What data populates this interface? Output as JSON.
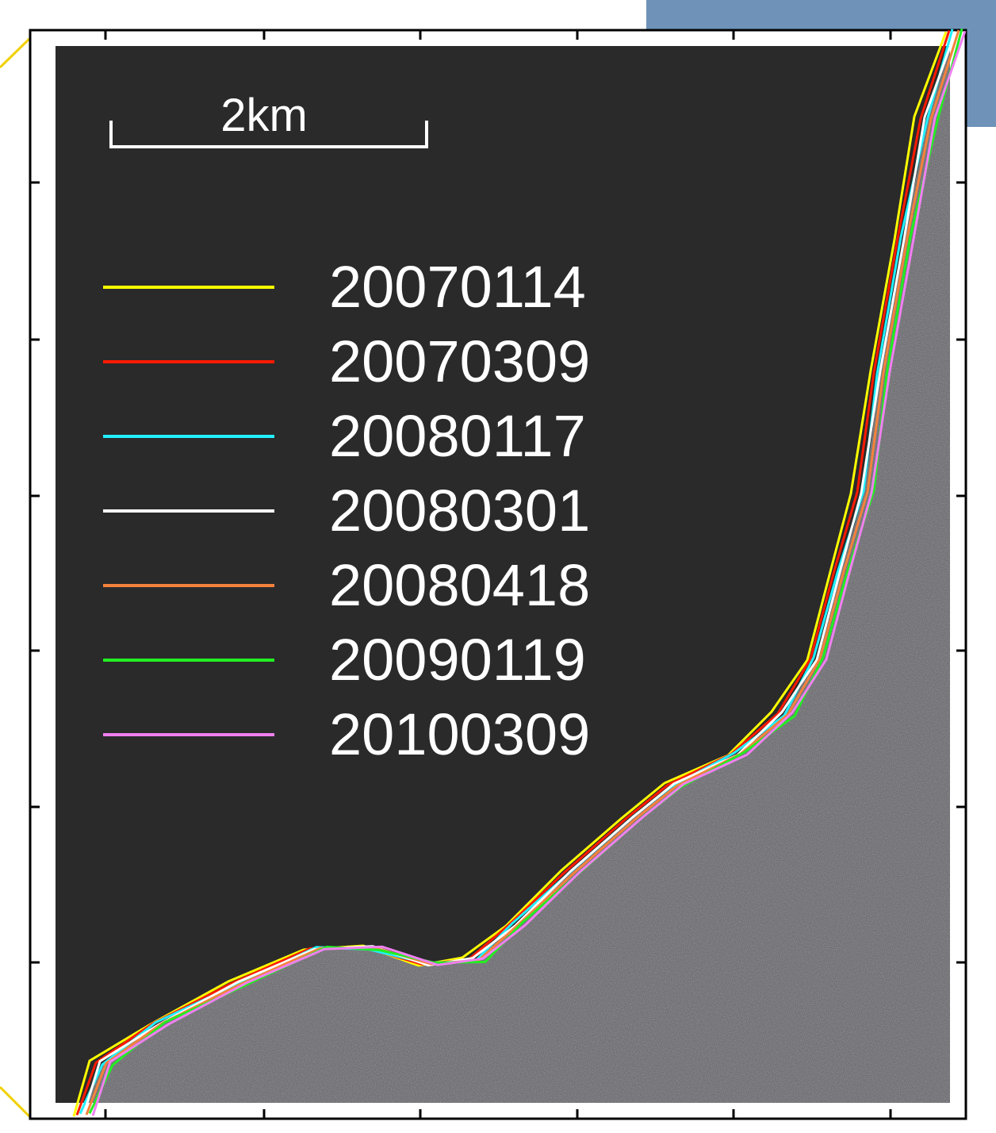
{
  "scale_bar": {
    "label": "2km"
  },
  "legend": {
    "items": [
      {
        "name": "20070114",
        "color": "#ffff00"
      },
      {
        "name": "20070309",
        "color": "#ff1a00"
      },
      {
        "name": "20080117",
        "color": "#22f0ff"
      },
      {
        "name": "20080301",
        "color": "#ffffff"
      },
      {
        "name": "20080418",
        "color": "#f5823c"
      },
      {
        "name": "20090119",
        "color": "#22ee22"
      },
      {
        "name": "20100309",
        "color": "#f07ff0"
      }
    ]
  }
}
